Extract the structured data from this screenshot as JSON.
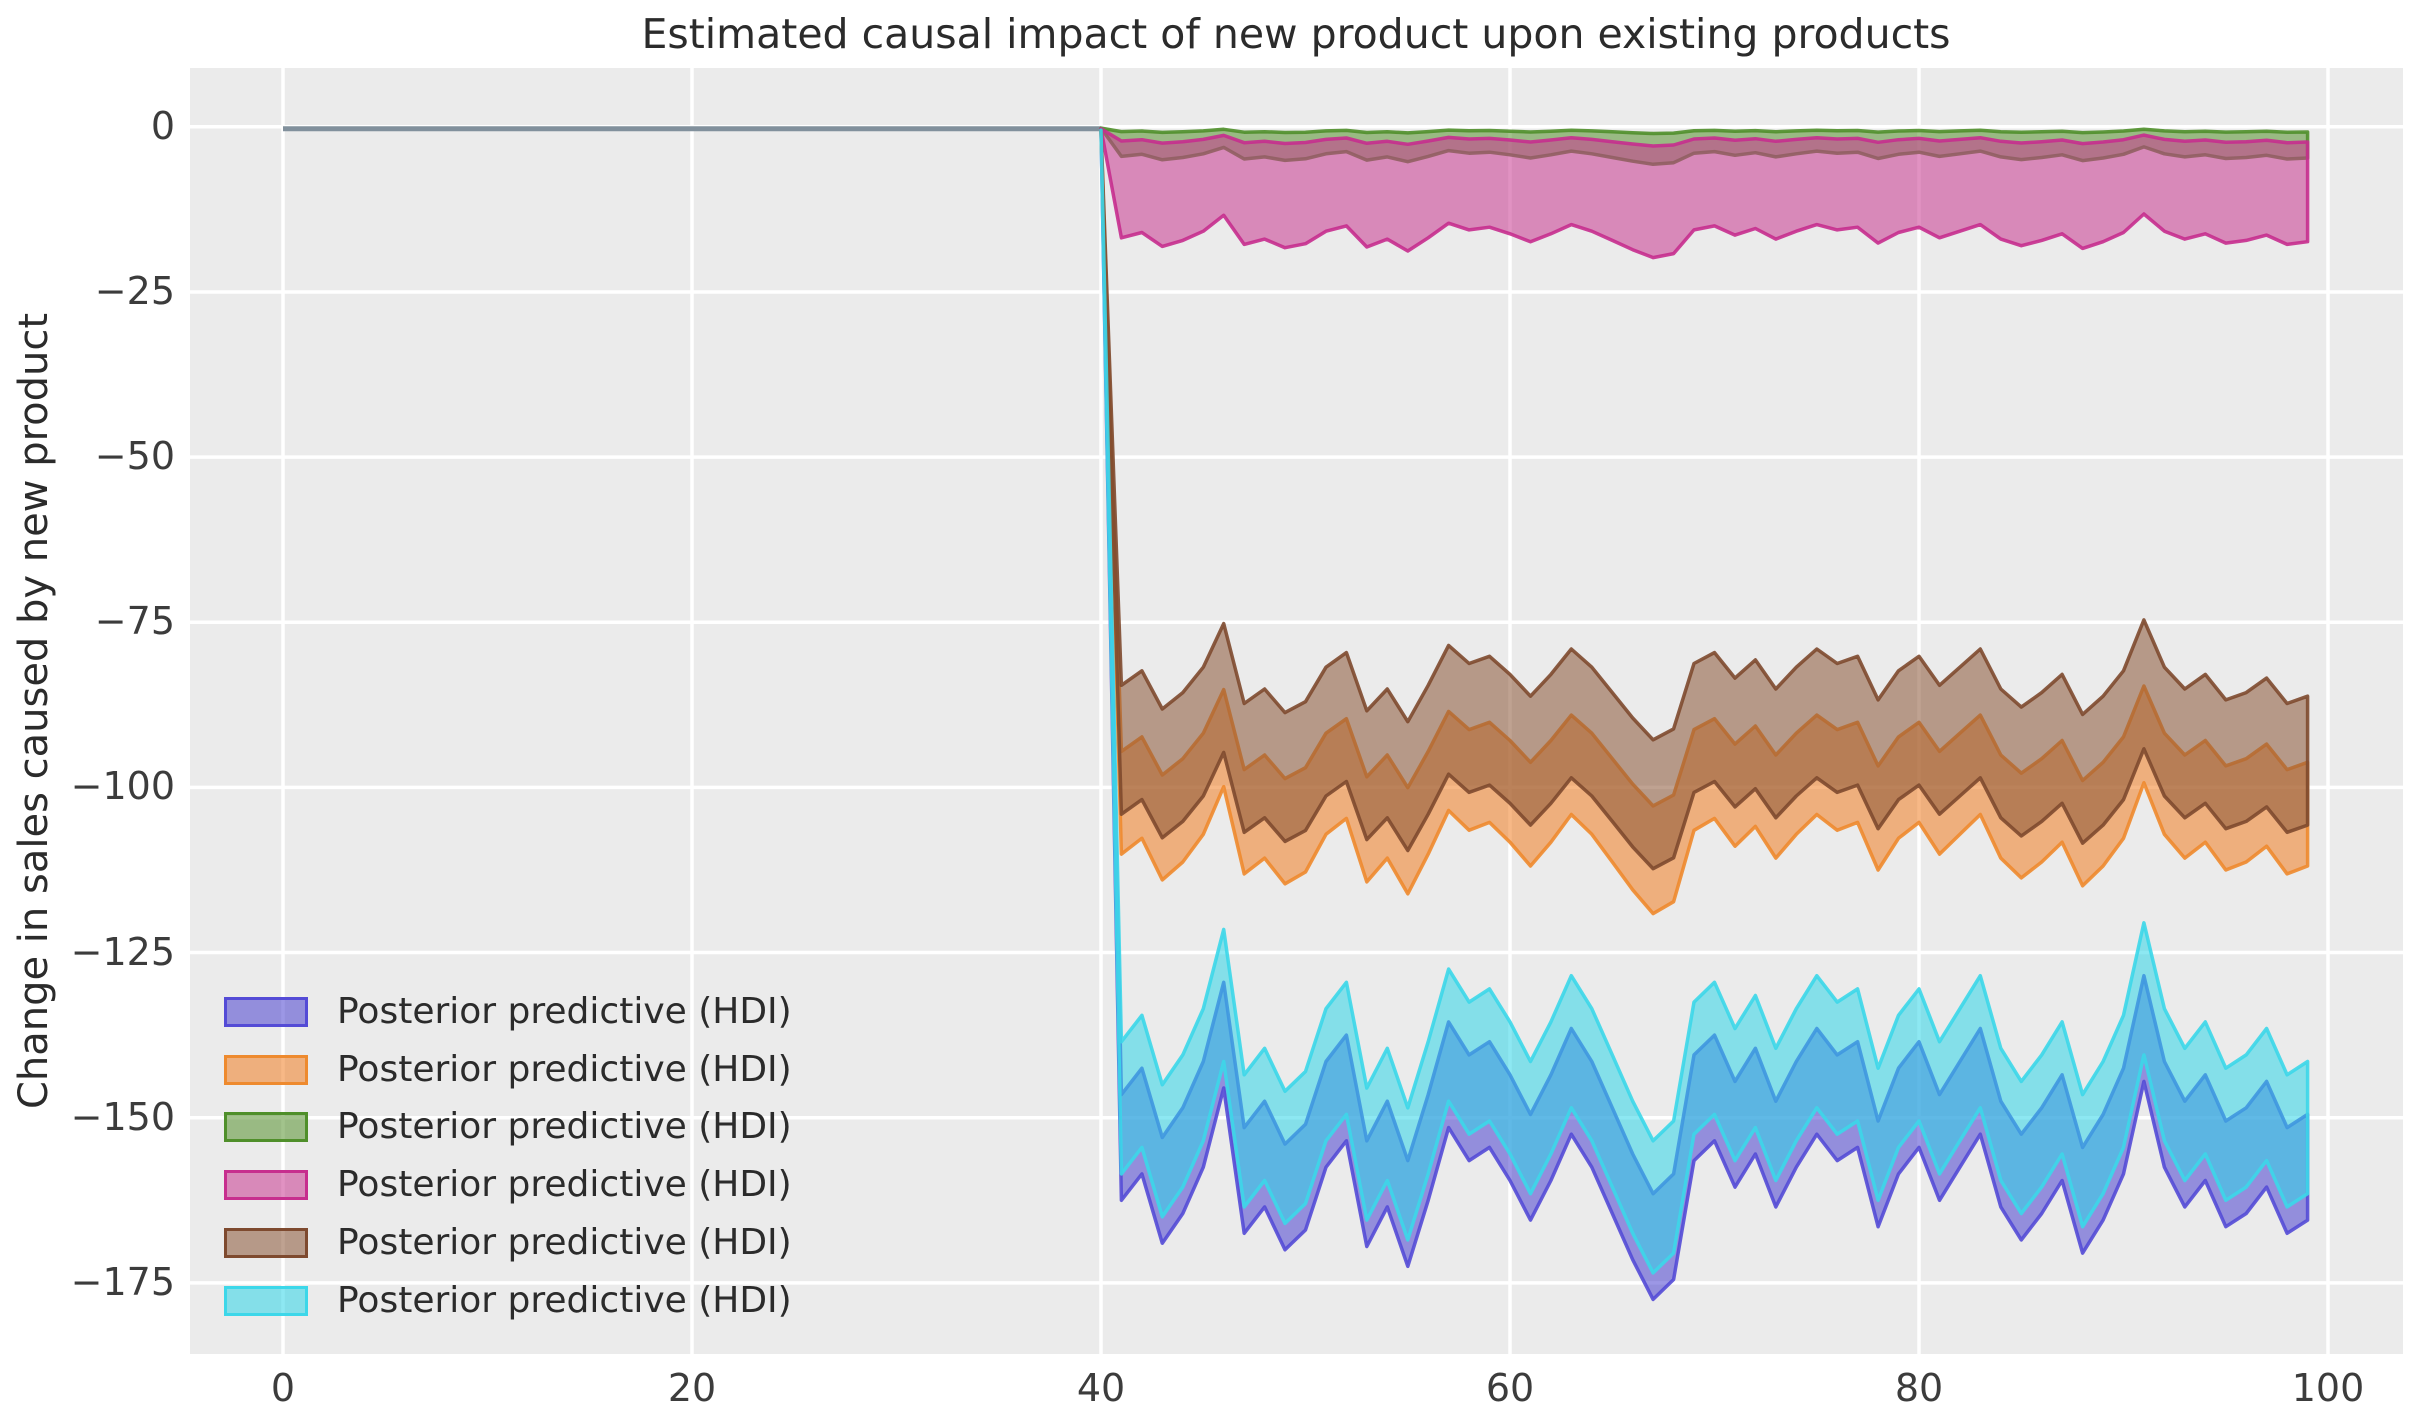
{
  "title": "Estimated causal impact of new product upon existing products",
  "y_axis_label": "Change in sales caused by new product",
  "x_axis_label": "",
  "colors": {
    "figure_background": "#ffffff",
    "plot_background": "#ebebeb",
    "gridline": "#ffffff",
    "title_text": "#2b2b2b",
    "tick_text": "#3c3c3c",
    "pre_period_line": "#81909c"
  },
  "axes": {
    "x_tick_labels": [
      "0",
      "20",
      "40",
      "60",
      "80",
      "100"
    ],
    "x_tick_values": [
      0,
      20,
      40,
      60,
      80,
      100
    ],
    "y_tick_labels": [
      "0",
      "−25",
      "−50",
      "−75",
      "−100",
      "−125",
      "−150",
      "−175"
    ],
    "y_tick_values": [
      0,
      -25,
      -50,
      -75,
      -100,
      -125,
      -150,
      -175
    ],
    "xlim": [
      -4.6,
      103.7
    ],
    "ylim": [
      -185.8,
      8.9
    ],
    "grid": true
  },
  "legend": {
    "position": "lower-left",
    "items": [
      {
        "label": "Posterior predictive (HDI)",
        "fill": "rgba(75,66,207,0.55)",
        "edge": "#544bd6"
      },
      {
        "label": "Posterior predictive (HDI)",
        "fill": "rgba(240,125,34,0.55)",
        "edge": "#ee8a2e"
      },
      {
        "label": "Posterior predictive (HDI)",
        "fill": "rgba(85,146,46,0.55)",
        "edge": "#4f8f2a"
      },
      {
        "label": "Posterior predictive (HDI)",
        "fill": "rgba(201,56,143,0.55)",
        "edge": "#c72e8e"
      },
      {
        "label": "Posterior predictive (HDI)",
        "fill": "rgba(138,85,55,0.55)",
        "edge": "#7e4a2f"
      },
      {
        "label": "Posterior predictive (HDI)",
        "fill": "rgba(47,213,232,0.55)",
        "edge": "#3cd7e9"
      }
    ]
  },
  "chart_data": {
    "type": "area",
    "title": "Estimated causal impact of new product upon existing products",
    "xlabel": "",
    "ylabel": "Change in sales caused by new product",
    "xlim": [
      -4.6,
      103.7
    ],
    "ylim": [
      -185.8,
      8.9
    ],
    "grid": true,
    "legend_position": "lower-left",
    "intervention_x": 40,
    "pre_period_line": {
      "x": [
        0,
        40
      ],
      "y": [
        0,
        0
      ],
      "color": "#81909c"
    },
    "note": "Six posterior-predictive HDI bands for x = 40..99 (step 1). At x=40 every band collapses to start_value (vertical drop from the zero line). For x = 41..99 each band edge equals offset + scale * shared_deviation[i], where shared_deviation is the common posterior wiggle listed below.",
    "x_start": 40,
    "x_end": 99,
    "shared_deviation_x": [
      41,
      42,
      43,
      44,
      45,
      46,
      47,
      48,
      49,
      50,
      51,
      52,
      53,
      54,
      55,
      56,
      57,
      58,
      59,
      60,
      61,
      62,
      63,
      64,
      65,
      66,
      67,
      68,
      69,
      70,
      71,
      72,
      73,
      74,
      75,
      76,
      77,
      78,
      79,
      80,
      81,
      82,
      83,
      84,
      85,
      86,
      87,
      88,
      89,
      90,
      91,
      92,
      93,
      94,
      95,
      96,
      97,
      98,
      99
    ],
    "shared_deviation": [
      -1,
      3,
      -7.5,
      -3,
      4,
      16,
      -6,
      -2,
      -8.5,
      -5.5,
      4,
      8,
      -8,
      -2,
      -11,
      -1,
      10,
      5,
      7,
      2,
      -4,
      2,
      9,
      4,
      -3,
      -10,
      -16,
      -13,
      5,
      8,
      1,
      6,
      -2,
      4,
      9,
      5,
      7,
      -5,
      3,
      7,
      -1,
      4,
      9,
      -2,
      -7,
      -3,
      2,
      -9,
      -4,
      3,
      17,
      4,
      -2,
      2,
      -5,
      -3,
      1,
      -6,
      -4
    ],
    "bands": [
      {
        "name": "blue",
        "label": "Posterior predictive (HDI)",
        "fill": "#4b42cf",
        "edge": "#544bd6",
        "fill_opacity": 0.55,
        "start_value": -0.5,
        "upper": {
          "offset": -145.5,
          "scale": 1.0
        },
        "lower": {
          "offset": -161.5,
          "scale": 1.0
        }
      },
      {
        "name": "orange",
        "label": "Posterior predictive (HDI)",
        "fill": "#f07d22",
        "edge": "#ee8a2e",
        "fill_opacity": 0.55,
        "start_value": -0.5,
        "upper": {
          "offset": -94.0,
          "scale": 0.55
        },
        "lower": {
          "offset": -109.5,
          "scale": 0.6
        }
      },
      {
        "name": "green",
        "label": "Posterior predictive (HDI)",
        "fill": "#55922e",
        "edge": "#4f8f2a",
        "fill_opacity": 0.55,
        "start_value": -0.2,
        "upper": {
          "offset": -0.7,
          "scale": 0.02
        },
        "lower": {
          "offset": -4.4,
          "scale": 0.08
        }
      },
      {
        "name": "pink",
        "label": "Posterior predictive (HDI)",
        "fill": "#c9388f",
        "edge": "#c72e8e",
        "fill_opacity": 0.55,
        "start_value": -0.3,
        "upper": {
          "offset": -2.1,
          "scale": 0.05
        },
        "lower": {
          "offset": -16.6,
          "scale": 0.2
        }
      },
      {
        "name": "brown",
        "label": "Posterior predictive (HDI)",
        "fill": "#8a5537",
        "edge": "#7e4a2f",
        "fill_opacity": 0.55,
        "start_value": -0.5,
        "upper": {
          "offset": -84.0,
          "scale": 0.55
        },
        "lower": {
          "offset": -103.5,
          "scale": 0.55
        }
      },
      {
        "name": "cyan",
        "label": "Posterior predictive (HDI)",
        "fill": "#2fd5e8",
        "edge": "#3cd7e9",
        "fill_opacity": 0.55,
        "start_value": -0.5,
        "upper": {
          "offset": -137.5,
          "scale": 1.0
        },
        "lower": {
          "offset": -157.5,
          "scale": 1.0
        }
      }
    ]
  }
}
